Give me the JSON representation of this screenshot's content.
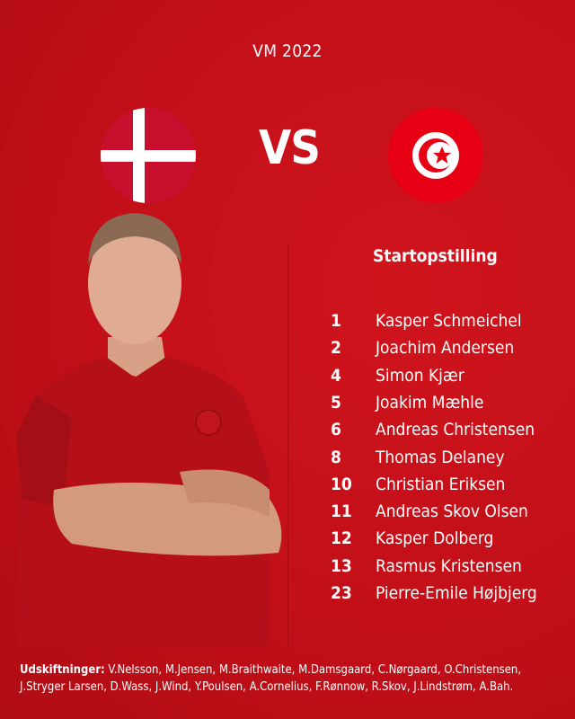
{
  "header": {
    "title": "VM 2022",
    "vs": "VS"
  },
  "teams": {
    "home": {
      "flag": "denmark-flag",
      "colors": {
        "red": "#c8102e",
        "white": "#ffffff"
      }
    },
    "away": {
      "flag": "tunisia-flag",
      "colors": {
        "red": "#e70013",
        "white": "#ffffff"
      }
    }
  },
  "lineup": {
    "title": "Startopstilling",
    "players": [
      {
        "number": "1",
        "name": "Kasper Schmeichel"
      },
      {
        "number": "2",
        "name": "Joachim Andersen"
      },
      {
        "number": "4",
        "name": "Simon Kjær"
      },
      {
        "number": "5",
        "name": "Joakim Mæhle"
      },
      {
        "number": "6",
        "name": "Andreas Christensen"
      },
      {
        "number": "8",
        "name": "Thomas Delaney"
      },
      {
        "number": "10",
        "name": "Christian Eriksen"
      },
      {
        "number": "11",
        "name": "Andreas Skov Olsen"
      },
      {
        "number": "12",
        "name": "Kasper Dolberg"
      },
      {
        "number": "13",
        "name": "Rasmus Kristensen"
      },
      {
        "number": "23",
        "name": "Pierre-Emile Højbjerg"
      }
    ]
  },
  "substitutes": {
    "label": "Udskiftninger:",
    "names": " V.Nelsson, M.Jensen, M.Braithwaite, M.Damsgaard, C.Nørgaard, O.Christensen, J.Stryger Larsen, D.Wass, J.Wind, Y.Poulsen, A.Cornelius, F.Rønnow, R.Skov, J.Lindstrøm, A.Bah."
  },
  "colors": {
    "background": "#c20f18",
    "text": "#ffffff"
  }
}
